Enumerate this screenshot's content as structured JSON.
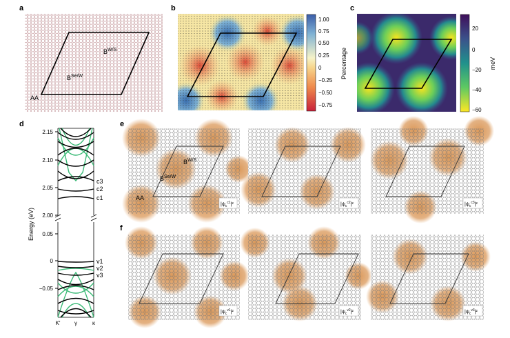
{
  "panels": {
    "a": {
      "label": "a",
      "site_labels": [
        "AA",
        "B^Se/W",
        "B^W/S"
      ]
    },
    "b": {
      "label": "b",
      "colorbar_label": "Percentage",
      "colorbar_ticks": [
        "1.00",
        "0.75",
        "0.50",
        "0.25",
        "0",
        "−0.25",
        "−0.50",
        "−0.75"
      ]
    },
    "c": {
      "label": "c",
      "colorbar_label": "meV",
      "colorbar_ticks": [
        "20",
        "0",
        "−20",
        "−40",
        "−60"
      ]
    },
    "d": {
      "label": "d",
      "ylabel": "Energy (eV)",
      "upper_ticks": [
        "2.15",
        "2.10",
        "2.05",
        "2.00"
      ],
      "lower_ticks": [
        "0.05",
        "0",
        "−0.05"
      ],
      "band_labels_upper": [
        "c3",
        "c2",
        "c1"
      ],
      "band_labels_lower": [
        "v1",
        "v2",
        "v3"
      ],
      "xticks": [
        "K′",
        "γ",
        "κ"
      ]
    },
    "e": {
      "label": "e",
      "site_labels": [
        "AA",
        "B^Se/W",
        "B^W/S"
      ],
      "wavefunction_labels": [
        "|ψ_c^c1|²",
        "|ψ_c^c2|²",
        "|ψ_c^c3|²"
      ]
    },
    "f": {
      "label": "f",
      "wavefunction_labels": [
        "|ψ_c^v1|²",
        "|ψ_c^v2|²",
        "|ψ_c^v3|²"
      ]
    }
  },
  "chart_data": [
    {
      "type": "heatmap",
      "title": "",
      "colorbar_label": "Percentage",
      "colorbar_range": [
        -0.85,
        1.1
      ],
      "colormap": "red-yellow-blue"
    },
    {
      "type": "heatmap",
      "title": "",
      "colorbar_label": "meV",
      "colorbar_range": [
        -62,
        32
      ],
      "colormap": "viridis_r"
    },
    {
      "type": "line",
      "title": "",
      "ylabel": "Energy (eV)",
      "x": [
        "K′",
        "γ",
        "κ"
      ],
      "ylim_upper": [
        2.0,
        2.16
      ],
      "ylim_lower": [
        -0.09,
        0.06
      ],
      "series": [
        {
          "name": "c1",
          "values": [
            2.032,
            2.033,
            2.032
          ]
        },
        {
          "name": "c2",
          "values": [
            2.045,
            2.046,
            2.045
          ]
        },
        {
          "name": "c3",
          "values": [
            2.058,
            2.06,
            2.058
          ]
        },
        {
          "name": "v1",
          "values": [
            0.0,
            -0.002,
            0.0
          ]
        },
        {
          "name": "v2",
          "values": [
            -0.012,
            -0.014,
            -0.012
          ]
        },
        {
          "name": "v3",
          "values": [
            -0.025,
            -0.028,
            -0.025
          ]
        }
      ]
    }
  ]
}
